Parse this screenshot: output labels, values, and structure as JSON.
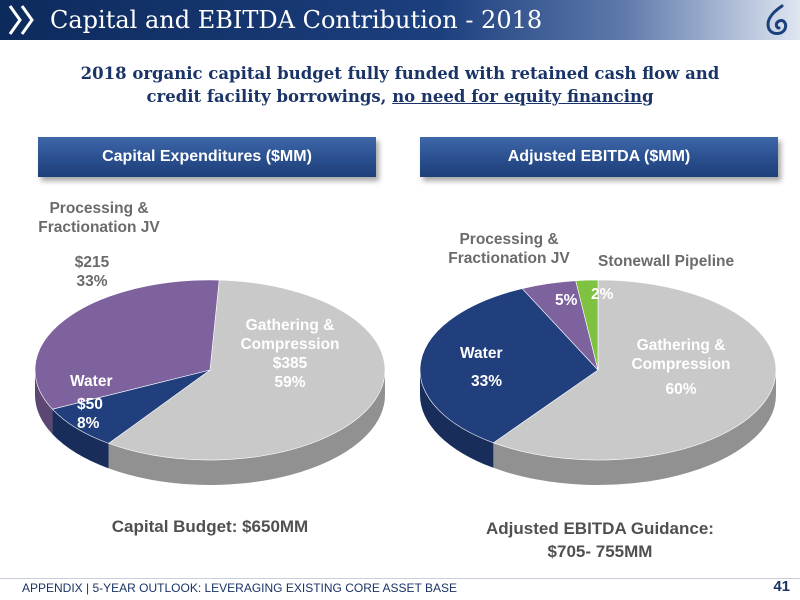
{
  "header": {
    "title": "Capital and EBITDA Contribution - 2018",
    "logo_icon": "flame-drop-logo-icon",
    "chevron_icon": "double-chevron-icon"
  },
  "subtitle": {
    "line1": "2018 organic capital budget fully funded with retained cash flow and",
    "line2_plain": "credit facility borrowings, ",
    "line2_underlined": "no need for equity financing"
  },
  "sections": {
    "capex_title": "Capital Expenditures ($MM)",
    "ebitda_title": "Adjusted EBITDA ($MM)"
  },
  "chart_data": [
    {
      "type": "pie",
      "title": "Capital Expenditures ($MM)",
      "colors": [
        "#c9c9c9",
        "#213f7d",
        "#7e629e"
      ],
      "slices": [
        {
          "name": "Gathering & Compression",
          "value": 385,
          "value_label": "$385",
          "percent": 59,
          "percent_label": "59%"
        },
        {
          "name": "Water",
          "value": 50,
          "value_label": "$50",
          "percent": 8,
          "percent_label": "8%"
        },
        {
          "name": "Processing & Fractionation JV",
          "name_line1": "Processing &",
          "name_line2": "Fractionation JV",
          "value": 215,
          "value_label": "$215",
          "percent": 33,
          "percent_label": "33%"
        }
      ],
      "caption": "Capital Budget: $650MM"
    },
    {
      "type": "pie",
      "title": "Adjusted EBITDA ($MM)",
      "colors": [
        "#c9c9c9",
        "#213f7d",
        "#7e629e",
        "#7fc241"
      ],
      "slices": [
        {
          "name": "Gathering & Compression",
          "name_line1": "Gathering &",
          "name_line2": "Compression",
          "percent": 60,
          "percent_label": "60%"
        },
        {
          "name": "Water",
          "percent": 33,
          "percent_label": "33%"
        },
        {
          "name": "Processing & Fractionation JV",
          "name_line1": "Processing &",
          "name_line2": "Fractionation JV",
          "percent": 5,
          "percent_label": "5%"
        },
        {
          "name": "Stonewall Pipeline",
          "percent": 2,
          "percent_label": "2%"
        }
      ],
      "caption_line1": "Adjusted EBITDA Guidance:",
      "caption_line2": "$705- 755MM"
    }
  ],
  "footer": {
    "text": "APPENDIX | 5-YEAR OUTLOOK: LEVERAGING EXISTING CORE ASSET BASE",
    "page": "41"
  }
}
